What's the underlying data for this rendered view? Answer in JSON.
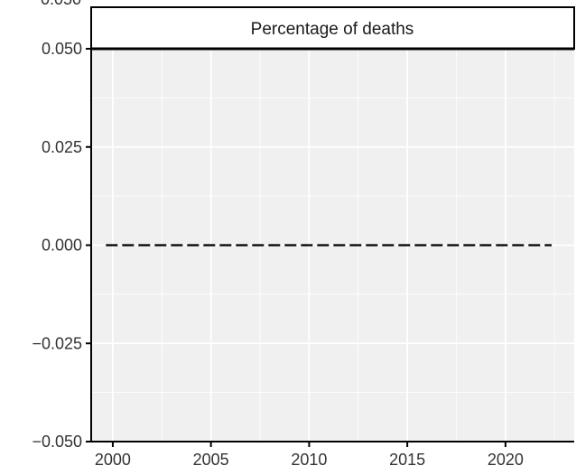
{
  "chart_data": {
    "type": "line",
    "panel_title": "Percentage of deaths",
    "x": [
      2000,
      2001,
      2002,
      2003,
      2004,
      2005,
      2006,
      2007,
      2008,
      2009,
      2010,
      2011,
      2012,
      2013,
      2014,
      2015,
      2016,
      2017,
      2018,
      2019,
      2020,
      2021,
      2022
    ],
    "series": [
      {
        "values": [
          0,
          0,
          0,
          0,
          0,
          0,
          0,
          0,
          0,
          0,
          0,
          0,
          0,
          0,
          0,
          0,
          0,
          0,
          0,
          0,
          0,
          0,
          0
        ],
        "line_style": "dashed",
        "color": "#000000"
      }
    ],
    "x_ticks": [
      2000,
      2005,
      2010,
      2015,
      2020
    ],
    "x_tick_labels": [
      "2000",
      "2005",
      "2010",
      "2015",
      "2020"
    ],
    "y_ticks": [
      0.05,
      0.025,
      0,
      -0.025,
      -0.05
    ],
    "y_tick_labels": [
      "0.050",
      "0.025",
      "0.000",
      "−0.025",
      "−0.050"
    ],
    "top_partial_tick_label": "0.050",
    "xlim": [
      1998.9,
      2023.5
    ],
    "ylim": [
      -0.05,
      0.05
    ],
    "grid": true,
    "panel_background": "#f0f0f0",
    "grid_color": "#ffffff",
    "axis_color": "#000000"
  }
}
